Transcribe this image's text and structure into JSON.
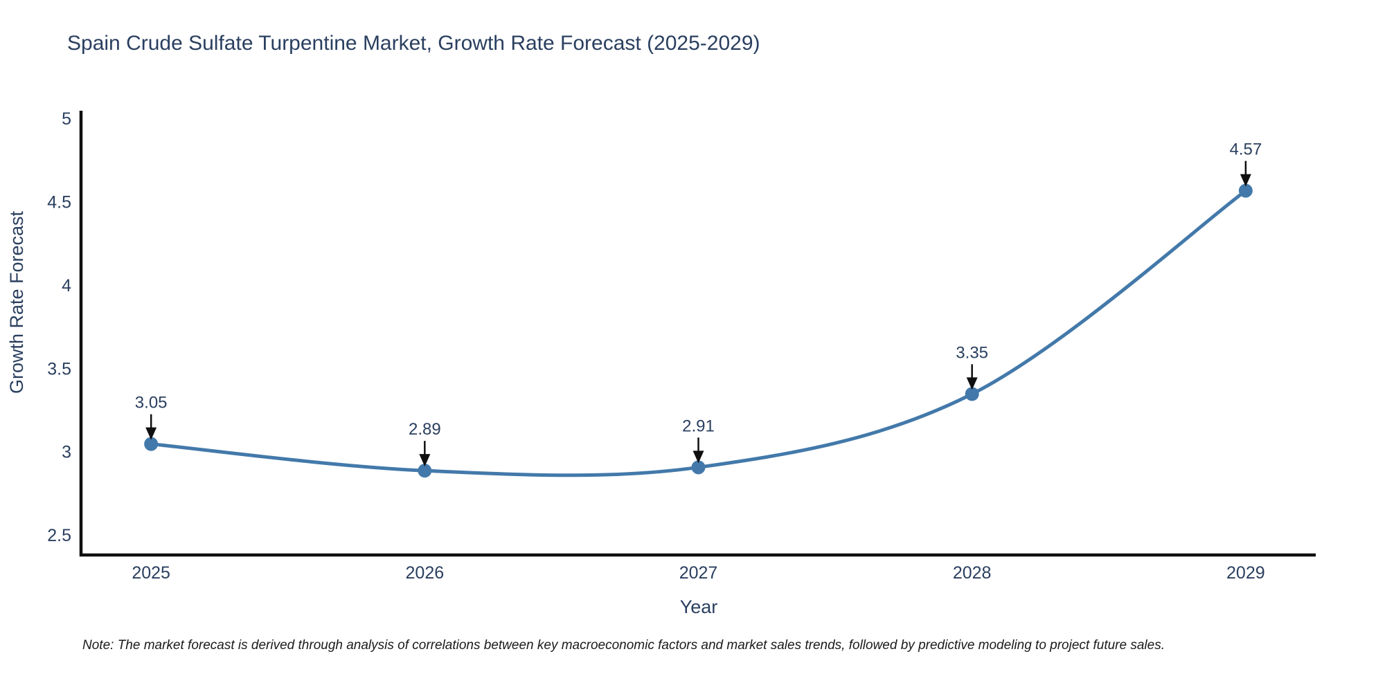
{
  "note": "Note: The market forecast is derived through analysis of correlations between key macroeconomic factors and market sales trends, followed by predictive modeling to project future sales.",
  "colors": {
    "line": "#4379aa",
    "marker": "#4379aa",
    "text": "#2a3f5f",
    "axis": "#0f0f0f",
    "arrow": "#0f0f0f",
    "background": "#ffffff"
  },
  "chart_data": {
    "type": "line",
    "title": "Spain Crude Sulfate Turpentine Market, Growth Rate Forecast (2025-2029)",
    "xlabel": "Year",
    "ylabel": "Growth Rate Forecast",
    "categories": [
      2025,
      2026,
      2027,
      2028,
      2029
    ],
    "values": [
      3.05,
      2.89,
      2.91,
      3.35,
      4.57
    ],
    "annotations": [
      "3.05",
      "2.89",
      "2.91",
      "3.35",
      "4.57"
    ],
    "xtick_labels": [
      "2025",
      "2026",
      "2027",
      "2028",
      "2029"
    ],
    "yticks": [
      2.5,
      3,
      3.5,
      4,
      4.5,
      5
    ],
    "ytick_labels": [
      "2.5",
      "3",
      "3.5",
      "4",
      "4.5",
      "5"
    ],
    "xlim": [
      2024.744,
      2029.256
    ],
    "ylim": [
      2.384,
      5.05
    ],
    "grid": false,
    "legend": "none",
    "line_shape": "spline",
    "markers": true
  }
}
